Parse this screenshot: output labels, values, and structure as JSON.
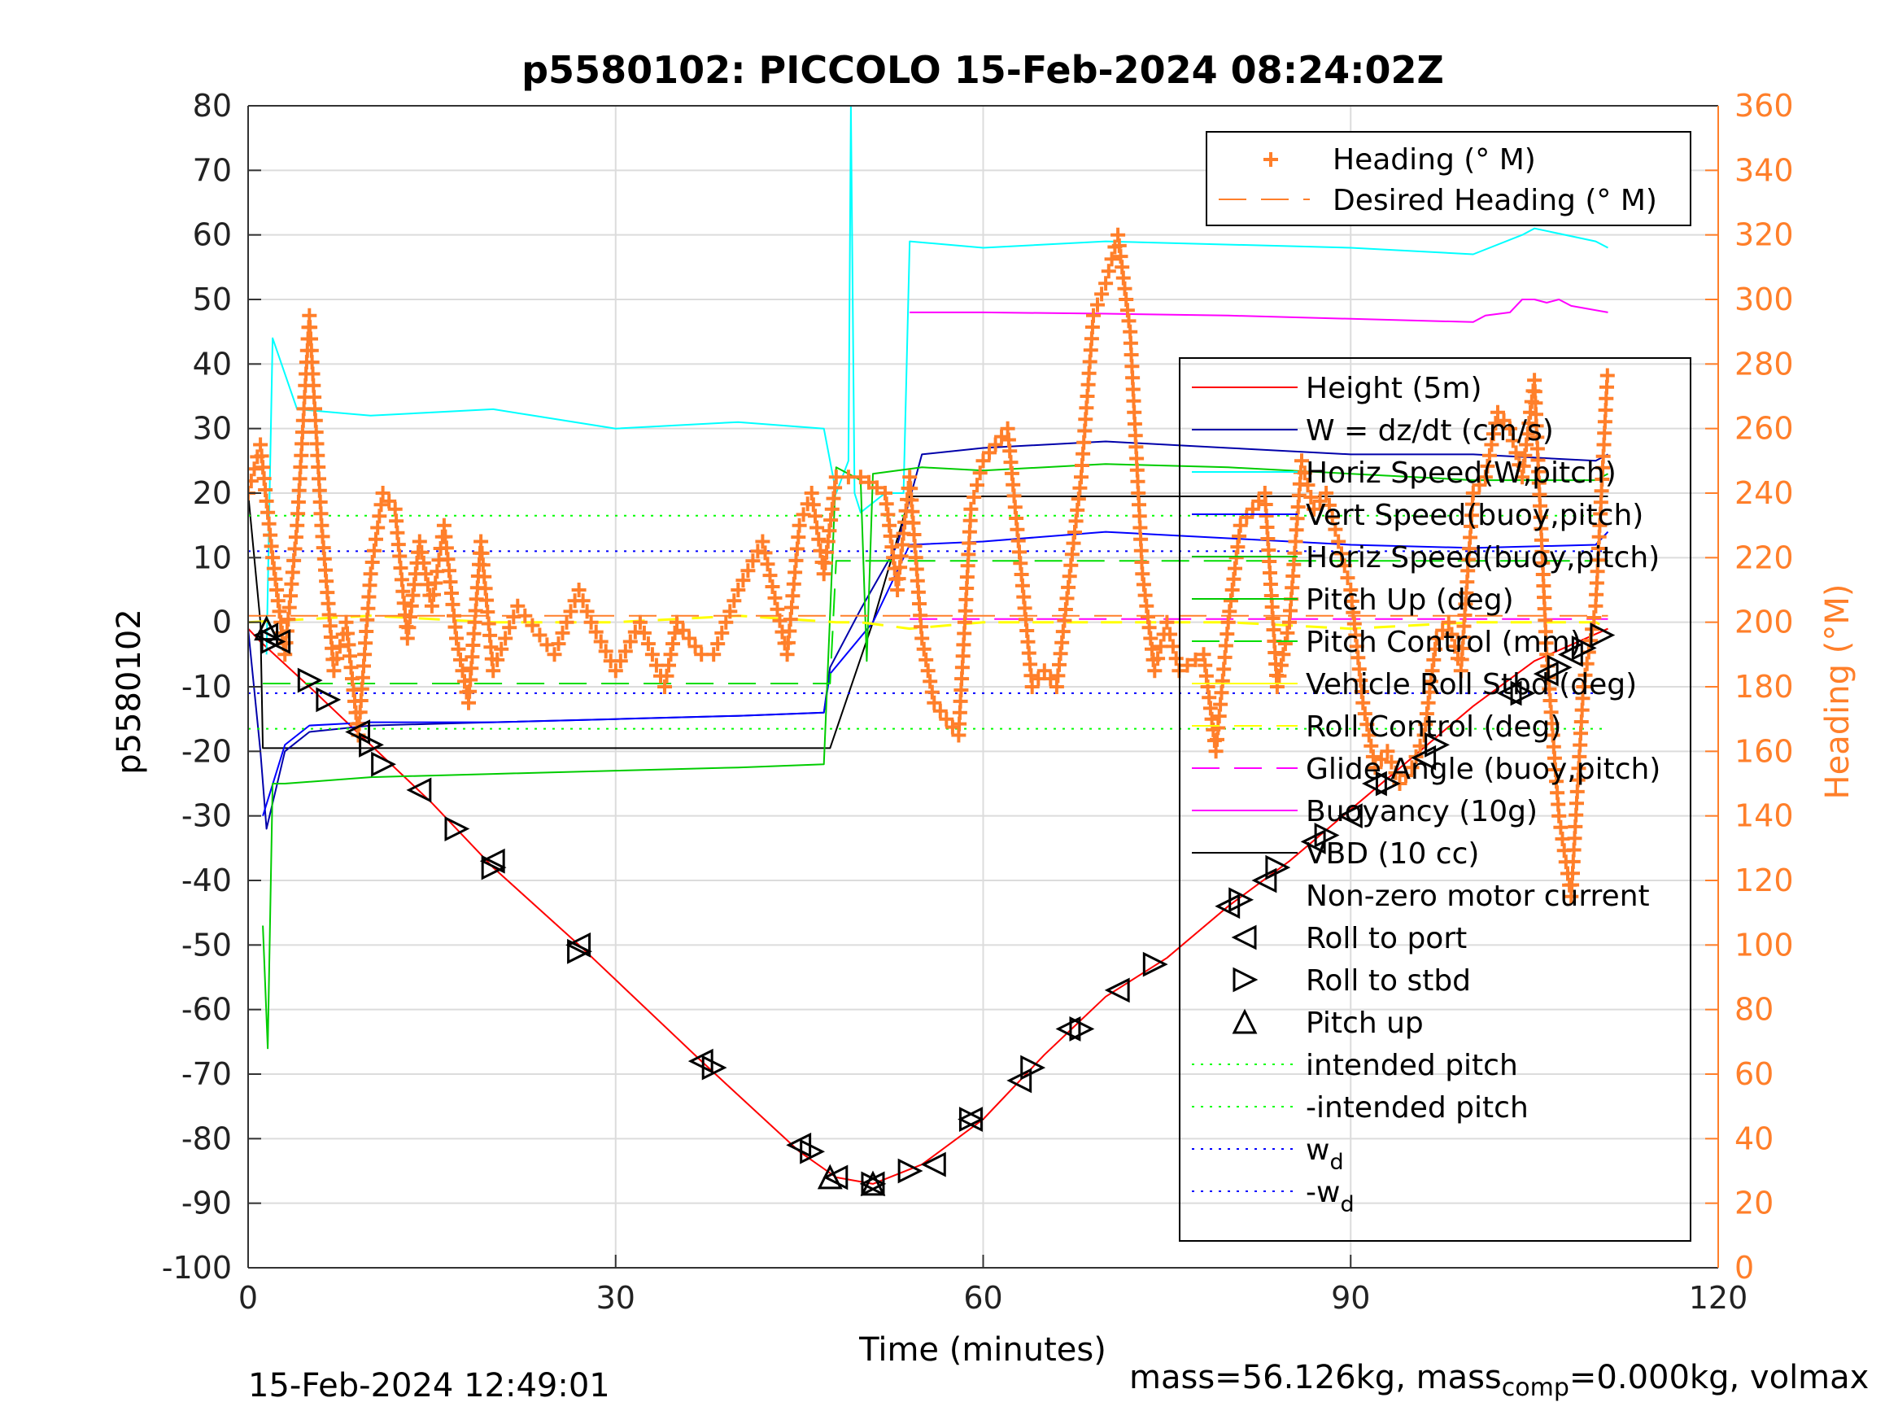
{
  "chart_data": {
    "type": "line",
    "title": "p5580102: PICCOLO 15-Feb-2024 08:24:02Z",
    "xlabel": "Time (minutes)",
    "ylabel": "p5580102",
    "y2label": "Heading (°M)",
    "xlim": [
      0,
      120
    ],
    "ylim": [
      -100,
      80
    ],
    "y2lim": [
      0,
      360
    ],
    "xticks": [
      "0",
      "30",
      "60",
      "90",
      "120"
    ],
    "yticks": [
      "80",
      "70",
      "60",
      "50",
      "40",
      "30",
      "20",
      "10",
      "0",
      "-10",
      "-20",
      "-30",
      "-40",
      "-50",
      "-60",
      "-70",
      "-80",
      "-90",
      "-100"
    ],
    "y2ticks": [
      "360",
      "340",
      "320",
      "300",
      "280",
      "260",
      "240",
      "220",
      "200",
      "180",
      "160",
      "140",
      "120",
      "100",
      "80",
      "60",
      "40",
      "20",
      "0"
    ],
    "grid": true,
    "colors": {
      "heading": "#ff7f2a",
      "height": "#ff0000",
      "w": "#0000aa",
      "horiz_speed_w": "#00ffff",
      "vert_speed_buoy": "#0000ff",
      "horiz_speed_buoy": "#00c000",
      "pitch_up": "#00cc00",
      "pitch_control": "#00dd00",
      "roll": "#ffff00",
      "glide_angle": "#ff00ff",
      "buoyancy": "#ff00ff",
      "vbd": "#000000",
      "intended_pitch": "#00ff00",
      "wd": "#0000ff"
    },
    "legend_top": {
      "position": "top-right",
      "entries": [
        "Heading (° M)",
        "Desired Heading (° M)"
      ]
    },
    "legend_main": {
      "position": "right",
      "entries": [
        "Height (5m)",
        "W = dz/dt (cm/s)",
        "Horiz Speed(W,pitch)",
        "Vert Speed(buoy,pitch)",
        "Horiz Speed(buoy,pitch)",
        "Pitch Up (deg)",
        "Pitch Control (mm)",
        "Vehicle Roll Stbd (deg)",
        "Roll Control (deg)",
        "Glide Angle (buoy,pitch)",
        "Buoyancy (10g)",
        "VBD (10 cc)",
        "Non-zero motor current",
        "Roll to port",
        "Roll to stbd",
        "Pitch up",
        "intended pitch",
        "-intended pitch",
        "w",
        "-w"
      ],
      "subscript": "d"
    },
    "series": [
      {
        "name": "Height (5m)",
        "x": [
          0,
          1,
          5,
          10,
          15,
          20,
          27,
          37,
          45,
          48,
          51,
          55,
          60,
          65,
          70,
          75,
          80,
          85,
          90,
          95,
          100,
          105,
          111
        ],
        "values": [
          -1,
          -3,
          -10,
          -19,
          -28,
          -38,
          -50,
          -68,
          -82,
          -86,
          -87,
          -84,
          -77,
          -67,
          -58,
          -52,
          -44,
          -37,
          -29,
          -21,
          -13,
          -6,
          -1
        ]
      },
      {
        "name": "VBD (10 cc)",
        "x": [
          0,
          1,
          1.2,
          47.5,
          51,
          54,
          111
        ],
        "values": [
          20,
          0,
          -19.5,
          -19.5,
          0,
          19.5,
          19.5
        ]
      },
      {
        "name": "W = dz/dt (cm/s)",
        "x": [
          0,
          1,
          1.5,
          3,
          5,
          10,
          20,
          30,
          40,
          47,
          47.5,
          50,
          53,
          55,
          60,
          70,
          80,
          90,
          100,
          110,
          111
        ],
        "values": [
          -1,
          -20,
          -32,
          -20,
          -17,
          -16,
          -15.5,
          -15,
          -14.5,
          -14,
          -7,
          2,
          12,
          26,
          27,
          28,
          27,
          26,
          26,
          25,
          26
        ]
      },
      {
        "name": "Vert Speed(buoy,pitch)",
        "x": [
          1.2,
          3,
          5,
          10,
          20,
          30,
          40,
          47,
          47.5,
          51,
          54,
          60,
          70,
          80,
          90,
          100,
          110,
          111
        ],
        "values": [
          -30,
          -19,
          -16,
          -15.5,
          -15.5,
          -15,
          -14.5,
          -14,
          -8,
          0,
          12,
          12.5,
          14,
          13,
          12,
          11.5,
          12,
          14
        ]
      },
      {
        "name": "Horiz Speed(W,pitch)",
        "x": [
          1.5,
          2,
          4,
          10,
          20,
          30,
          40,
          47,
          48,
          49,
          49.2,
          49.5,
          50,
          52,
          53.5,
          54,
          60,
          70,
          90,
          100,
          104,
          105,
          110,
          111
        ],
        "values": [
          -5,
          44,
          33,
          32,
          33,
          30,
          31,
          30,
          20,
          25,
          80,
          20,
          17,
          20,
          20,
          59,
          58,
          59,
          58,
          57,
          60,
          61,
          59,
          58
        ]
      },
      {
        "name": "Pitch Up (deg)",
        "x": [
          1.2,
          1.6,
          2,
          3,
          10,
          20,
          30,
          40,
          47,
          48,
          49,
          50,
          50.5,
          51,
          55,
          60,
          70,
          80,
          90,
          100,
          110,
          111
        ],
        "values": [
          -47,
          -66,
          -25,
          -25,
          -24,
          -23.5,
          -23,
          -22.5,
          -22,
          24,
          23,
          22,
          -6,
          23,
          24,
          23.5,
          24.5,
          24,
          23,
          22,
          22,
          23
        ]
      },
      {
        "name": "Pitch Control (mm)",
        "x": [
          1.2,
          10,
          46,
          47.5,
          48,
          54,
          104,
          105,
          111
        ],
        "values": [
          -9.5,
          -9.5,
          -9.5,
          -9.5,
          9.5,
          9.5,
          9.5,
          9.5,
          9.5
        ]
      },
      {
        "name": "Roll Control (deg)",
        "x": [
          0,
          10,
          20,
          30,
          40,
          48,
          50,
          54,
          60,
          70,
          80,
          90,
          100,
          110,
          111
        ],
        "values": [
          0,
          1,
          0,
          0,
          1,
          0,
          0,
          -1,
          0,
          0,
          0,
          -1,
          0,
          0,
          -1
        ]
      },
      {
        "name": "Glide Angle (buoy,pitch)",
        "x": [
          54,
          111
        ],
        "values": [
          0.5,
          0.5
        ]
      },
      {
        "name": "Buoyancy (10g)",
        "x": [
          54,
          60,
          70,
          80,
          90,
          100,
          101,
          103,
          104,
          105,
          106,
          107,
          108,
          111
        ],
        "values": [
          48,
          48,
          47.8,
          47.5,
          47,
          46.5,
          47.5,
          48,
          50,
          50,
          49.5,
          50,
          49,
          48
        ]
      },
      {
        "name": "intended pitch",
        "x": [
          0,
          111
        ],
        "values": [
          16.5,
          16.5
        ]
      },
      {
        "name": "-intended pitch",
        "x": [
          0,
          111
        ],
        "values": [
          -16.5,
          -16.5
        ]
      },
      {
        "name": "w_d",
        "x": [
          0,
          111
        ],
        "values": [
          11,
          11
        ]
      },
      {
        "name": "-w_d",
        "x": [
          0,
          111
        ],
        "values": [
          -11,
          -11
        ]
      },
      {
        "name": "Desired Heading (° M)",
        "x": [
          0,
          111
        ],
        "values": [
          202,
          202
        ]
      },
      {
        "name": "Heading (° M)",
        "axis": "right",
        "x": [
          0,
          1,
          2,
          3,
          4,
          5,
          6,
          7,
          8,
          9,
          10,
          11,
          12,
          13,
          14,
          15,
          16,
          17,
          18,
          19,
          20,
          22,
          25,
          27,
          28,
          30,
          32,
          34,
          35,
          37,
          38,
          40,
          42,
          44,
          45,
          46,
          47,
          48,
          50,
          52,
          53,
          54,
          55,
          56,
          57,
          58,
          59,
          60,
          62,
          64,
          65,
          66,
          68,
          69,
          70,
          71,
          72,
          73,
          74,
          75,
          76,
          78,
          79,
          80,
          81,
          82,
          83,
          84,
          85,
          86,
          87,
          88,
          89,
          90,
          91,
          92,
          93,
          94,
          95,
          96,
          97,
          98,
          99,
          100,
          101,
          102,
          103,
          104,
          105,
          106,
          107,
          108,
          109,
          110,
          111
        ],
        "values": [
          240,
          255,
          220,
          190,
          230,
          295,
          230,
          185,
          200,
          165,
          215,
          240,
          235,
          195,
          225,
          205,
          230,
          195,
          175,
          225,
          185,
          205,
          190,
          210,
          200,
          185,
          200,
          180,
          200,
          190,
          190,
          210,
          225,
          190,
          230,
          240,
          215,
          245,
          245,
          240,
          210,
          245,
          195,
          175,
          170,
          165,
          235,
          250,
          260,
          180,
          185,
          180,
          245,
          295,
          305,
          320,
          290,
          215,
          185,
          200,
          185,
          190,
          160,
          200,
          230,
          235,
          240,
          180,
          200,
          250,
          235,
          240,
          225,
          210,
          175,
          155,
          160,
          150,
          155,
          165,
          195,
          200,
          185,
          240,
          245,
          265,
          260,
          245,
          275,
          190,
          140,
          115,
          180,
          205,
          280
        ]
      }
    ],
    "markers": {
      "roll_to_port": {
        "x": [
          1.5,
          2.5,
          9,
          14,
          20,
          27,
          37,
          45,
          48,
          51,
          56,
          59,
          63,
          67,
          71,
          80,
          83,
          87,
          90,
          92,
          96,
          103,
          106,
          108
        ],
        "values": [
          -2,
          -3,
          -17,
          -26,
          -37,
          -50,
          -68,
          -81,
          -86,
          -87,
          -84,
          -77,
          -71,
          -63,
          -57,
          -44,
          -40,
          -34,
          -30,
          -25,
          -21,
          -11,
          -8,
          -5
        ]
      },
      "roll_to_stbd": {
        "x": [
          2,
          5,
          6.5,
          10,
          11,
          17,
          20,
          27,
          38,
          46,
          51,
          54,
          59,
          64,
          68,
          74,
          81,
          84,
          88,
          93,
          97,
          104,
          107,
          109,
          110.5
        ],
        "values": [
          -3,
          -9,
          -12,
          -19,
          -22,
          -32,
          -38,
          -51,
          -69,
          -82,
          -87,
          -85,
          -77,
          -69,
          -63,
          -53,
          -43,
          -38,
          -33,
          -25,
          -19,
          -11,
          -7,
          -4,
          -2
        ]
      },
      "pitch_up": {
        "x": [
          1.5,
          47.5,
          51
        ],
        "values": [
          -1,
          -86,
          -87
        ]
      }
    },
    "annotations": {
      "timestamp": "15-Feb-2024 12:49:01",
      "mass_prefix": "mass=56.126kg, mass",
      "mass_sub": "comp",
      "mass_suffix": "=0.000kg, volmax"
    }
  }
}
